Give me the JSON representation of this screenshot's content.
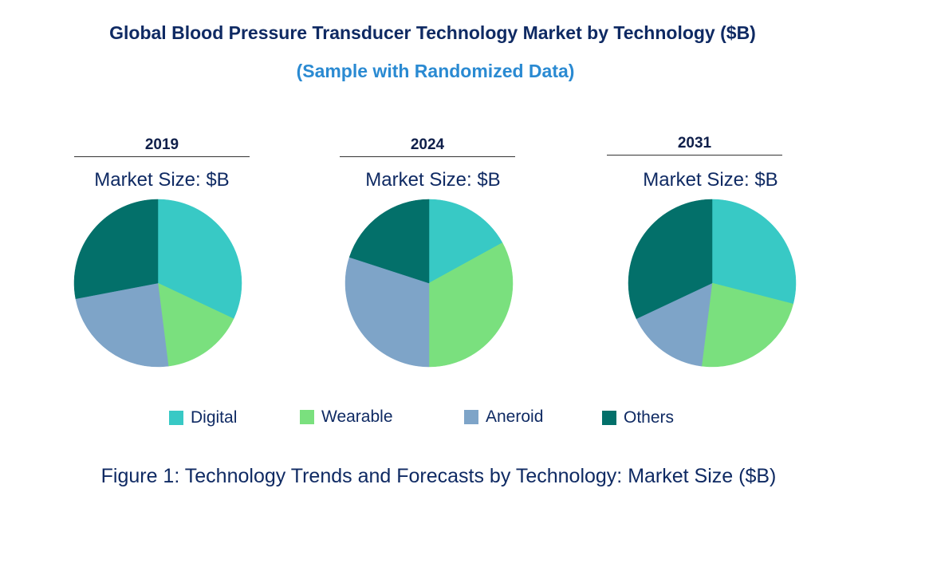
{
  "title": "Global Blood Pressure Transducer Technology Market by  Technology ($B)",
  "subtitle": "(Sample with Randomized Data)",
  "market_size_label": "Market Size: $B",
  "caption": "Figure 1: Technology Trends and Forecasts by Technology: Market Size ($B)",
  "legend": [
    {
      "label": "Digital",
      "color": "#38c9c5"
    },
    {
      "label": "Wearable",
      "color": "#7ae07e"
    },
    {
      "label": "Aneroid",
      "color": "#7ea4c8"
    },
    {
      "label": "Others",
      "color": "#03706a"
    }
  ],
  "chart_data": [
    {
      "type": "pie",
      "title": "2019",
      "categories": [
        "Digital",
        "Wearable",
        "Aneroid",
        "Others"
      ],
      "values": [
        32,
        16,
        24,
        28
      ]
    },
    {
      "type": "pie",
      "title": "2024",
      "categories": [
        "Digital",
        "Wearable",
        "Aneroid",
        "Others"
      ],
      "values": [
        17,
        33,
        30,
        20
      ]
    },
    {
      "type": "pie",
      "title": "2031",
      "categories": [
        "Digital",
        "Wearable",
        "Aneroid",
        "Others"
      ],
      "values": [
        29,
        23,
        16,
        32
      ]
    }
  ]
}
